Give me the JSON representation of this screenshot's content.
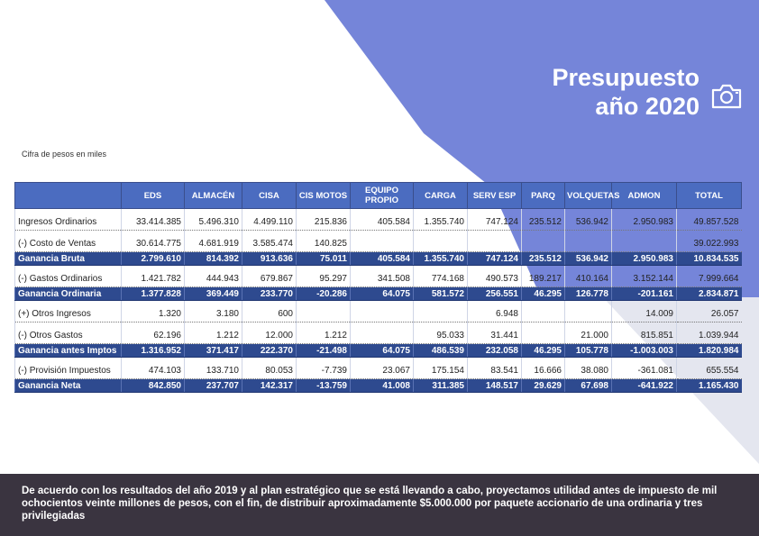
{
  "title": {
    "line1": "Presupuesto",
    "line2": "año 2020"
  },
  "subtitle": "Cifra de pesos en miles",
  "columns": [
    "",
    "EDS",
    "ALMACÉN",
    "CISA",
    "CIS MOTOS",
    "EQUIPO PROPIO",
    "CARGA",
    "SERV ESP",
    "PARQ",
    "VOLQUETAS",
    "ADMON",
    "TOTAL"
  ],
  "rows": [
    {
      "label": "Ingresos Ordinarios",
      "bold": false,
      "values": [
        "33.414.385",
        "5.496.310",
        "4.499.110",
        "215.836",
        "405.584",
        "1.355.740",
        "747.124",
        "235.512",
        "536.942",
        "2.950.983",
        "49.857.528"
      ]
    },
    {
      "label": "(-) Costo de Ventas",
      "bold": false,
      "values": [
        "30.614.775",
        "4.681.919",
        "3.585.474",
        "140.825",
        "",
        "",
        "",
        "",
        "",
        "",
        "39.022.993"
      ]
    },
    {
      "label": "Ganancia Bruta",
      "bold": true,
      "values": [
        "2.799.610",
        "814.392",
        "913.636",
        "75.011",
        "405.584",
        "1.355.740",
        "747.124",
        "235.512",
        "536.942",
        "2.950.983",
        "10.834.535"
      ]
    },
    {
      "label": "(-) Gastos Ordinarios",
      "bold": false,
      "values": [
        "1.421.782",
        "444.943",
        "679.867",
        "95.297",
        "341.508",
        "774.168",
        "490.573",
        "189.217",
        "410.164",
        "3.152.144",
        "7.999.664"
      ]
    },
    {
      "label": "Ganancia Ordinaria",
      "bold": true,
      "values": [
        "1.377.828",
        "369.449",
        "233.770",
        "-20.286",
        "64.075",
        "581.572",
        "256.551",
        "46.295",
        "126.778",
        "-201.161",
        "2.834.871"
      ]
    },
    {
      "label": "(+) Otros Ingresos",
      "bold": false,
      "values": [
        "1.320",
        "3.180",
        "600",
        "",
        "",
        "",
        "6.948",
        "",
        "",
        "14.009",
        "26.057"
      ]
    },
    {
      "label": "(-) Otros Gastos",
      "bold": false,
      "values": [
        "62.196",
        "1.212",
        "12.000",
        "1.212",
        "",
        "95.033",
        "31.441",
        "",
        "21.000",
        "815.851",
        "1.039.944"
      ]
    },
    {
      "label": "Ganancia antes Imptos",
      "bold": true,
      "values": [
        "1.316.952",
        "371.417",
        "222.370",
        "-21.498",
        "64.075",
        "486.539",
        "232.058",
        "46.295",
        "105.778",
        "-1.003.003",
        "1.820.984"
      ]
    },
    {
      "label": "(-) Provisión Impuestos",
      "bold": false,
      "values": [
        "474.103",
        "133.710",
        "80.053",
        "-7.739",
        "23.067",
        "175.154",
        "83.541",
        "16.666",
        "38.080",
        "-361.081",
        "655.554"
      ]
    },
    {
      "label": "Ganancia Neta",
      "bold": true,
      "values": [
        "842.850",
        "237.707",
        "142.317",
        "-13.759",
        "41.008",
        "311.385",
        "148.517",
        "29.629",
        "67.698",
        "-641.922",
        "1.165.430"
      ]
    }
  ],
  "footer_text": "De acuerdo con los resultados del año 2019 y al plan estratégico que se está llevando a cabo, proyectamos utilidad antes de impuesto de mil ochocientos veinte millones de pesos, con el fin, de distribuir aproximadamente $5.000.000 por paquete accionario de una ordinaria y tres privilegiadas",
  "icons": {
    "camera": "camera-icon"
  },
  "colors": {
    "accent": "#7585d9",
    "header": "#4b6cc0",
    "bold_row": "#2e4a8f",
    "footer": "#3a3440"
  }
}
